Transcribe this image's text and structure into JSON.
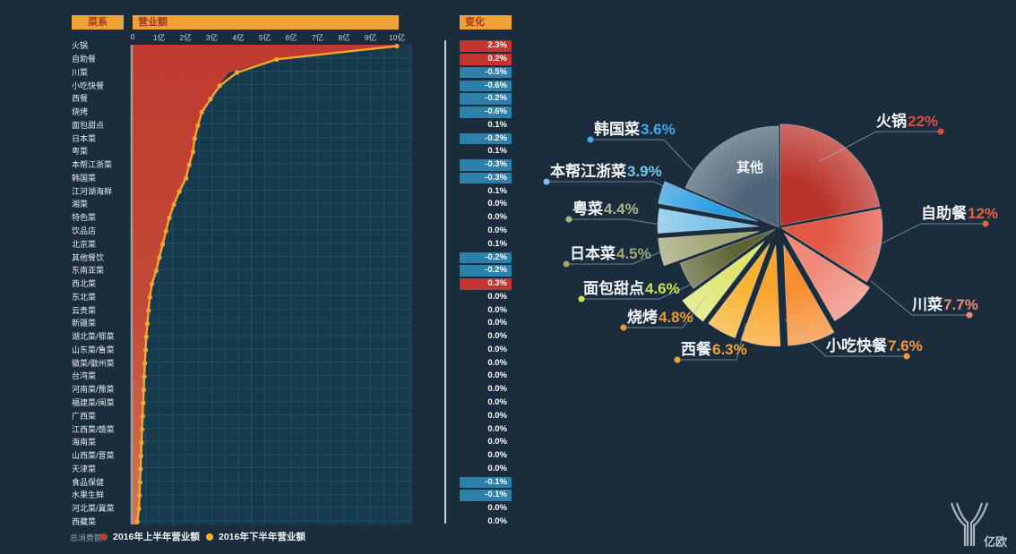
{
  "headers": {
    "category": "菜系",
    "revenue": "营业额",
    "change": "变化"
  },
  "legend": {
    "prefix": "总消费额",
    "series1": "2016年上半年营业额",
    "series2": "2016年下半年营业额"
  },
  "logo": {
    "text": "亿欧"
  },
  "colors": {
    "chip_up": "#c23531",
    "chip_down": "#2d80a9",
    "area_top": "#c73b2e",
    "area_bottom": "#d87b50",
    "line": "#f6a62c",
    "plot_bg": "#16394b",
    "grid": "#2a566c",
    "page_bg": "#1b2d3d"
  },
  "chart_data": [
    {
      "type": "area-line",
      "title": "营业额",
      "x_axis": {
        "ticks": [
          "0",
          "1亿",
          "2亿",
          "3亿",
          "4亿",
          "5亿",
          "6亿",
          "7亿",
          "8亿",
          "9亿",
          "10亿"
        ],
        "max": 10,
        "unit": "亿"
      },
      "categories": [
        "火锅",
        "自助餐",
        "川菜",
        "小吃快餐",
        "西餐",
        "烧烤",
        "面包甜点",
        "日本菜",
        "粤菜",
        "本帮江浙菜",
        "韩国菜",
        "江河湖海鲜",
        "湘菜",
        "特色菜",
        "饮品店",
        "北京菜",
        "其他餐饮",
        "东南亚菜",
        "西北菜",
        "东北菜",
        "云贵菜",
        "新疆菜",
        "湖北菜/鄂菜",
        "山东菜/鲁菜",
        "徽菜/徽州菜",
        "台湾菜",
        "河南菜/豫菜",
        "福建菜/闽菜",
        "广西菜",
        "江西菜/赣菜",
        "海南菜",
        "山西菜/晋菜",
        "天津菜",
        "食品保健",
        "水果生鲜",
        "河北菜/冀菜",
        "西藏菜"
      ],
      "series": [
        {
          "name": "2016年上半年营业额",
          "color": "#c43a2e",
          "values": [
            10,
            5.4,
            3.65,
            3.25,
            2.9,
            2.6,
            2.45,
            2.33,
            2.26,
            2.12,
            2.0,
            1.75,
            1.55,
            1.38,
            1.25,
            1.13,
            1.0,
            0.88,
            0.72,
            0.64,
            0.6,
            0.56,
            0.52,
            0.49,
            0.46,
            0.44,
            0.42,
            0.4,
            0.38,
            0.36,
            0.34,
            0.32,
            0.3,
            0.28,
            0.26,
            0.24,
            0.18
          ]
        },
        {
          "name": "2016年下半年营业额",
          "color": "#f6a62c",
          "values": [
            10,
            5.45,
            3.95,
            3.3,
            2.95,
            2.62,
            2.47,
            2.35,
            2.28,
            2.14,
            2.02,
            1.77,
            1.56,
            1.39,
            1.26,
            1.14,
            1.01,
            0.89,
            0.73,
            0.65,
            0.6,
            0.56,
            0.52,
            0.49,
            0.46,
            0.44,
            0.42,
            0.4,
            0.38,
            0.36,
            0.34,
            0.32,
            0.3,
            0.28,
            0.26,
            0.24,
            0.18
          ]
        }
      ],
      "changes": [
        {
          "value": "2.3%",
          "trend": "up"
        },
        {
          "value": "0.2%",
          "trend": "up"
        },
        {
          "value": "-0.5%",
          "trend": "down"
        },
        {
          "value": "-0.6%",
          "trend": "down"
        },
        {
          "value": "-0.2%",
          "trend": "down"
        },
        {
          "value": "-0.6%",
          "trend": "down"
        },
        {
          "value": "0.1%",
          "trend": "flat"
        },
        {
          "value": "-0.2%",
          "trend": "down"
        },
        {
          "value": "0.1%",
          "trend": "flat"
        },
        {
          "value": "-0.3%",
          "trend": "down"
        },
        {
          "value": "-0.3%",
          "trend": "down"
        },
        {
          "value": "0.1%",
          "trend": "flat"
        },
        {
          "value": "0.0%",
          "trend": "flat"
        },
        {
          "value": "0.0%",
          "trend": "flat"
        },
        {
          "value": "0.0%",
          "trend": "flat"
        },
        {
          "value": "0.1%",
          "trend": "flat"
        },
        {
          "value": "-0.2%",
          "trend": "down"
        },
        {
          "value": "-0.2%",
          "trend": "down"
        },
        {
          "value": "0.3%",
          "trend": "up"
        },
        {
          "value": "0.0%",
          "trend": "flat"
        },
        {
          "value": "0.0%",
          "trend": "flat"
        },
        {
          "value": "0.0%",
          "trend": "flat"
        },
        {
          "value": "0.0%",
          "trend": "flat"
        },
        {
          "value": "0.0%",
          "trend": "flat"
        },
        {
          "value": "0.0%",
          "trend": "flat"
        },
        {
          "value": "0.0%",
          "trend": "flat"
        },
        {
          "value": "0.0%",
          "trend": "flat"
        },
        {
          "value": "0.0%",
          "trend": "flat"
        },
        {
          "value": "0.0%",
          "trend": "flat"
        },
        {
          "value": "0.0%",
          "trend": "flat"
        },
        {
          "value": "0.0%",
          "trend": "flat"
        },
        {
          "value": "0.0%",
          "trend": "flat"
        },
        {
          "value": "0.0%",
          "trend": "flat"
        },
        {
          "value": "-0.1%",
          "trend": "down"
        },
        {
          "value": "-0.1%",
          "trend": "down"
        },
        {
          "value": "0.0%",
          "trend": "flat"
        },
        {
          "value": "0.0%",
          "trend": "flat"
        }
      ]
    },
    {
      "type": "pie",
      "center_label": "其他",
      "slices": [
        {
          "name": "火锅",
          "pct": "22%",
          "value": 22,
          "color": "#b93229",
          "label_color": "#e04a3a",
          "explode": 3
        },
        {
          "name": "自助餐",
          "pct": "12%",
          "value": 12,
          "color": "#e25845",
          "label_color": "#e8604a",
          "explode": 3
        },
        {
          "name": "川菜",
          "pct": "7.7%",
          "value": 7.7,
          "color": "#f0897a",
          "label_color": "#f0897a",
          "explode": 9
        },
        {
          "name": "小吃快餐",
          "pct": "7.6%",
          "value": 7.6,
          "color": "#f78e33",
          "label_color": "#f5953e",
          "explode": 20
        },
        {
          "name": "西餐",
          "pct": "6.3%",
          "value": 6.3,
          "color": "#f9a42c",
          "label_color": "#f2a231",
          "explode": 20
        },
        {
          "name": "烧烤",
          "pct": "4.8%",
          "value": 4.8,
          "color": "#f9b132",
          "label_color": "#f09a30",
          "explode": 20
        },
        {
          "name": "面包甜点",
          "pct": "4.6%",
          "value": 4.6,
          "color": "#dce66e",
          "label_color": "#cfe14e",
          "explode": 22
        },
        {
          "name": "日本菜",
          "pct": "4.5%",
          "value": 4.5,
          "color": "#5d6334",
          "label_color": "#a2a86e",
          "explode": 4
        },
        {
          "name": "粤菜",
          "pct": "4.4%",
          "value": 4.4,
          "color": "#a2a674",
          "label_color": "#aab885",
          "explode": 22
        },
        {
          "name": "本帮江浙菜",
          "pct": "3.9%",
          "value": 3.9,
          "color": "#7cc3e8",
          "label_color": "#76c6ec",
          "explode": 22
        },
        {
          "name": "韩国菜",
          "pct": "3.6%",
          "value": 3.6,
          "color": "#2d9de2",
          "label_color": "#41a8ef",
          "explode": 24
        },
        {
          "name": "其他",
          "pct": "",
          "value": 18.6,
          "color": "#4e6578",
          "label_color": "#ffffff",
          "explode": 0
        }
      ]
    }
  ]
}
